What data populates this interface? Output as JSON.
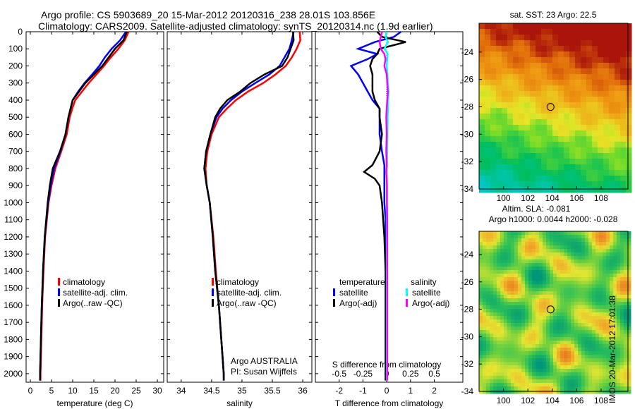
{
  "title_line1": "Argo profile: CS 5903689_20 15-Mar-2012 20120316_238 28.01S 103.856E",
  "title_line2": "Climatology: CARS2009. Satellite-adjusted climatology: synTS_20120314.nc (1.9d earlier)",
  "side_stamp": "IMOS 20-Mar-2012 17:01:38",
  "colors": {
    "climatology": "#ff0000",
    "satellite": "#0000ff",
    "argo": "#000000",
    "sal_satellite": "#00ffff",
    "sal_argo": "#ff00ff"
  },
  "chart_data": [
    {
      "type": "line",
      "name": "temperature",
      "xlabel": "temperature (deg C)",
      "xlim": [
        -1,
        31.5
      ],
      "ylim": [
        0,
        2050
      ],
      "xticks": [
        0,
        5,
        10,
        15,
        20,
        25,
        30
      ],
      "yticks": [
        0,
        100,
        200,
        300,
        400,
        500,
        600,
        700,
        800,
        900,
        1000,
        1100,
        1200,
        1300,
        1400,
        1500,
        1600,
        1700,
        1800,
        1900,
        2000
      ],
      "legend": [
        "climatology",
        "satellite-adj. clim.",
        "Argo(..raw -QC)"
      ],
      "depth": [
        0,
        50,
        100,
        150,
        200,
        250,
        300,
        350,
        400,
        450,
        500,
        600,
        700,
        800,
        900,
        1000,
        1200,
        1400,
        1600,
        1800,
        2000,
        2040
      ],
      "series": [
        {
          "name": "climatology",
          "color": "#ff0000",
          "values": [
            23.2,
            22.3,
            20.8,
            19,
            17.4,
            15.6,
            13.8,
            12.2,
            10.6,
            9.9,
            9.3,
            8.6,
            7.3,
            5.9,
            5,
            4.3,
            3.5,
            3.1,
            2.8,
            2.6,
            2.4,
            2.4
          ]
        },
        {
          "name": "satellite-adj. clim.",
          "color": "#0000ff",
          "values": [
            22.6,
            21.2,
            19.2,
            17.6,
            16.3,
            14.6,
            12.8,
            11.3,
            10,
            9.5,
            9,
            8.3,
            7.1,
            5.6,
            4.8,
            4.2,
            3.4,
            3,
            2.7,
            2.5,
            2.3,
            2.3
          ]
        },
        {
          "name": "Argo(..raw -QC)",
          "color": "#000000",
          "values": [
            22.8,
            22,
            20,
            18.5,
            17,
            15,
            13,
            11.5,
            10,
            9.5,
            9,
            8.3,
            7,
            5.3,
            4.6,
            4.1,
            3.4,
            3,
            2.7,
            2.5,
            2.3,
            2.3
          ]
        }
      ]
    },
    {
      "type": "line",
      "name": "salinity",
      "xlabel": "salinity",
      "xlim": [
        33.77,
        36.15
      ],
      "ylim": [
        0,
        2050
      ],
      "xticks": [
        34,
        34.5,
        35,
        35.5,
        36
      ],
      "legend": [
        "climatology",
        "satellite-adj. clim.",
        "Argo(..raw -QC)"
      ],
      "annotation": [
        "Argo AUSTRALIA",
        "PI: Susan Wijffels"
      ],
      "depth": [
        0,
        50,
        100,
        150,
        200,
        250,
        300,
        350,
        400,
        450,
        500,
        600,
        700,
        800,
        900,
        1000,
        1200,
        1400,
        1600,
        1800,
        2000,
        2040
      ],
      "series": [
        {
          "name": "climatology",
          "color": "#ff0000",
          "values": [
            35.95,
            35.96,
            35.9,
            35.82,
            35.72,
            35.55,
            35.35,
            35.1,
            34.9,
            34.75,
            34.62,
            34.5,
            34.43,
            34.4,
            34.42,
            34.47,
            34.53,
            34.57,
            34.62,
            34.66,
            34.7,
            34.7
          ]
        },
        {
          "name": "satellite-adj. clim.",
          "color": "#0000ff",
          "values": [
            35.85,
            35.82,
            35.78,
            35.7,
            35.62,
            35.45,
            35.22,
            35.0,
            34.82,
            34.68,
            34.58,
            34.48,
            34.41,
            34.38,
            34.42,
            34.47,
            34.52,
            34.56,
            34.62,
            34.66,
            34.7,
            34.7
          ]
        },
        {
          "name": "Argo(..raw -QC)",
          "color": "#000000",
          "values": [
            35.84,
            35.85,
            35.8,
            35.75,
            35.66,
            35.37,
            35.14,
            34.97,
            34.76,
            34.64,
            34.56,
            34.48,
            34.41,
            34.38,
            34.42,
            34.47,
            34.52,
            34.56,
            34.62,
            34.66,
            34.7,
            34.7
          ]
        }
      ]
    },
    {
      "type": "line",
      "name": "differences",
      "xlabel": "T difference from climatology",
      "xlabel2": "S difference from climatology",
      "xlim": [
        -3,
        3.2
      ],
      "xticks": [
        -2,
        -1,
        0,
        1,
        2
      ],
      "sticks": [
        "-0.5",
        "-0.25",
        "0",
        "0.25",
        "0.5"
      ],
      "svals": [
        -0.5,
        -0.25,
        0,
        0.25,
        0.5
      ],
      "s_scale": 4,
      "ylim": [
        0,
        2050
      ],
      "legend_t_title": "temperature",
      "legend_s_title": "salinity",
      "legend": [
        "satellite",
        "Argo(-adj)",
        "satellite",
        "Argo(-adj)"
      ],
      "depth": [
        0,
        30,
        60,
        100,
        130,
        160,
        200,
        250,
        300,
        350,
        400,
        450,
        500,
        600,
        700,
        780,
        820,
        860,
        900,
        1000,
        1100,
        1200,
        1400,
        1600,
        1800,
        2000,
        2040
      ],
      "series": [
        {
          "name": "T satellite",
          "color": "#0000ff",
          "values": [
            0.6,
            0.3,
            -0.5,
            -1.2,
            -0.4,
            -0.8,
            -1.5,
            -1.2,
            -1,
            -0.8,
            -0.6,
            -0.3,
            -0.3,
            -0.3,
            -0.2,
            -0.1,
            -0.1,
            -0.1,
            -0.1,
            -0.1,
            -0.05,
            -0.05,
            0,
            0,
            0,
            0,
            0
          ]
        },
        {
          "name": "T Argo(-adj)",
          "color": "#000000",
          "values": [
            -0.4,
            -0.2,
            0.8,
            -0.3,
            -0.4,
            -0.6,
            -0.7,
            -0.6,
            -0.6,
            -0.6,
            -0.5,
            -0.3,
            -0.3,
            -0.2,
            -0.3,
            -0.6,
            -0.95,
            -0.5,
            -0.3,
            -0.2,
            -0.15,
            -0.1,
            -0.05,
            -0.05,
            -0.05,
            -0.05,
            -0.05
          ]
        },
        {
          "name": "S satellite",
          "color": "#00ffff",
          "values": [
            -0.02,
            -0.05,
            0.05,
            -0.1,
            0.04,
            0.02,
            0,
            0.03,
            0.05,
            0.08,
            0.06,
            0.05,
            0.04,
            0.03,
            0.02,
            0.01,
            0,
            0,
            0,
            0,
            0,
            0,
            0,
            0,
            0,
            0,
            0
          ]
        },
        {
          "name": "S Argo(-adj)",
          "color": "#ff00ff",
          "values": [
            -0.2,
            -0.25,
            -0.3,
            -0.25,
            -0.1,
            -0.05,
            -0.1,
            0,
            0.02,
            0.05,
            0.02,
            0,
            -0.02,
            0,
            -0.02,
            0,
            -0.02,
            0,
            0.01,
            0.01,
            0.02,
            0.02,
            0.02,
            0.02,
            0.02,
            0.02,
            0.02
          ]
        }
      ]
    },
    {
      "type": "heatmap",
      "name": "sst-map",
      "title": "sat. SST: 23 Argo: 22.5",
      "xlim": [
        98,
        110.2
      ],
      "ylim": [
        -34,
        -21.9
      ],
      "xticks": [
        100,
        102,
        104,
        106,
        108
      ],
      "yticks": [
        -24,
        -26,
        -28,
        -30,
        -32,
        -34
      ],
      "marker": [
        103.856,
        -28.01
      ]
    },
    {
      "type": "heatmap",
      "name": "sla-map",
      "title": "Altim. SLA: -0.081",
      "title2": "Argo h1000: 0.0044 h2000: -0.028",
      "xlim": [
        98,
        110.2
      ],
      "ylim": [
        -34,
        -22.3
      ],
      "xticks": [
        100,
        102,
        104,
        106,
        108
      ],
      "yticks": [
        -24,
        -26,
        -28,
        -30,
        -32,
        -34
      ],
      "marker": [
        103.856,
        -28.01
      ]
    }
  ]
}
